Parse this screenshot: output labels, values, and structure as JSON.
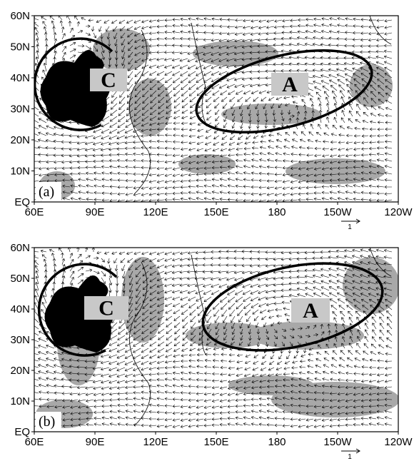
{
  "y_ticks": [
    "60N",
    "50N",
    "40N",
    "30N",
    "20N",
    "10N",
    "EQ"
  ],
  "x_ticks": [
    "60E",
    "90E",
    "120E",
    "150E",
    "180",
    "150W",
    "120W"
  ],
  "panels": [
    {
      "label": "(a)",
      "cyclone": "C",
      "anticyclone": "A",
      "scale": "1"
    },
    {
      "label": "(b)",
      "cyclone": "C",
      "anticyclone": "A",
      "scale": "1"
    }
  ]
}
